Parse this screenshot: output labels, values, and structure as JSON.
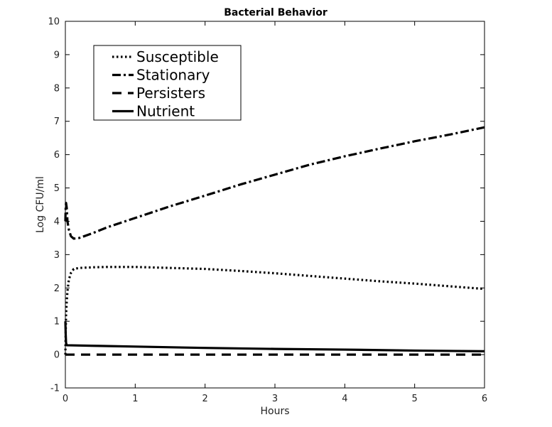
{
  "chart_data": {
    "type": "line",
    "title": "Bacterial Behavior",
    "xlabel": "Hours",
    "ylabel": "Log CFU/ml",
    "xlim": [
      0,
      6
    ],
    "ylim": [
      -1,
      10
    ],
    "xticks": [
      "0",
      "1",
      "2",
      "3",
      "4",
      "5",
      "6"
    ],
    "yticks": [
      "-1",
      "0",
      "1",
      "2",
      "3",
      "4",
      "5",
      "6",
      "7",
      "8",
      "9",
      "10"
    ],
    "grid": false,
    "legend_position": "top-left",
    "series": [
      {
        "name": "Susceptible",
        "style": "dotted",
        "color": "#000000",
        "x": [
          0,
          0.005,
          0.01,
          0.02,
          0.03,
          0.05,
          0.08,
          0.12,
          0.2,
          0.4,
          0.6,
          0.8,
          1.0,
          1.5,
          2.0,
          2.5,
          3.0,
          3.5,
          4.0,
          4.5,
          5.0,
          5.5,
          6.0
        ],
        "y": [
          0.0,
          0.7,
          1.2,
          1.6,
          1.9,
          2.25,
          2.45,
          2.57,
          2.6,
          2.62,
          2.63,
          2.63,
          2.63,
          2.6,
          2.57,
          2.51,
          2.44,
          2.36,
          2.28,
          2.2,
          2.13,
          2.05,
          1.97
        ]
      },
      {
        "name": "Stationary",
        "style": "dash-dot",
        "color": "#000000",
        "x": [
          0,
          0.005,
          0.01,
          0.02,
          0.03,
          0.05,
          0.08,
          0.12,
          0.2,
          0.4,
          0.6,
          1.0,
          1.5,
          2.0,
          2.5,
          3.0,
          3.5,
          4.0,
          4.5,
          5.0,
          5.5,
          6.0
        ],
        "y": [
          4.0,
          4.45,
          4.55,
          4.4,
          4.0,
          3.75,
          3.55,
          3.48,
          3.5,
          3.65,
          3.82,
          4.1,
          4.45,
          4.77,
          5.1,
          5.4,
          5.7,
          5.95,
          6.18,
          6.4,
          6.6,
          6.82
        ]
      },
      {
        "name": "Persisters",
        "style": "dashed",
        "color": "#000000",
        "x": [
          0,
          6
        ],
        "y": [
          0.0,
          0.0
        ]
      },
      {
        "name": "Nutrient",
        "style": "solid",
        "color": "#000000",
        "x": [
          0,
          0.005,
          0.01,
          0.02,
          0.5,
          1.0,
          2.0,
          3.0,
          4.0,
          5.0,
          6.0
        ],
        "y": [
          1.0,
          0.6,
          0.35,
          0.28,
          0.26,
          0.24,
          0.2,
          0.17,
          0.15,
          0.12,
          0.1
        ]
      }
    ]
  }
}
